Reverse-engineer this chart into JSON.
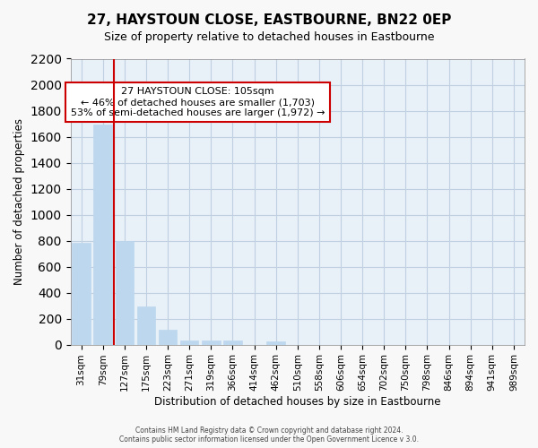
{
  "title": "27, HAYSTOUN CLOSE, EASTBOURNE, BN22 0EP",
  "subtitle": "Size of property relative to detached houses in Eastbourne",
  "xlabel": "Distribution of detached houses by size in Eastbourne",
  "ylabel": "Number of detached properties",
  "footer_line1": "Contains HM Land Registry data © Crown copyright and database right 2024.",
  "footer_line2": "Contains public sector information licensed under the Open Government Licence v 3.0.",
  "bin_labels": [
    "31sqm",
    "79sqm",
    "127sqm",
    "175sqm",
    "223sqm",
    "271sqm",
    "319sqm",
    "366sqm",
    "414sqm",
    "462sqm",
    "510sqm",
    "558sqm",
    "606sqm",
    "654sqm",
    "702sqm",
    "750sqm",
    "798sqm",
    "846sqm",
    "894sqm",
    "941sqm",
    "989sqm"
  ],
  "bar_values": [
    780,
    1690,
    800,
    295,
    113,
    35,
    35,
    35,
    0,
    25,
    0,
    0,
    0,
    0,
    0,
    0,
    0,
    0,
    0,
    0,
    0
  ],
  "bar_color": "#bdd7ee",
  "bar_edge_color": "#bdd7ee",
  "property_line_x": 1.5,
  "property_sqm": 105,
  "annotation_title": "27 HAYSTOUN CLOSE: 105sqm",
  "annotation_line1": "← 46% of detached houses are smaller (1,703)",
  "annotation_line2": "53% of semi-detached houses are larger (1,972) →",
  "annotation_box_color": "#ffffff",
  "annotation_box_edge_color": "#cc0000",
  "property_line_color": "#cc0000",
  "ylim": [
    0,
    2200
  ],
  "yticks": [
    0,
    200,
    400,
    600,
    800,
    1000,
    1200,
    1400,
    1600,
    1800,
    2000,
    2200
  ],
  "grid_color": "#c0d0e0",
  "background_color": "#e8f0f8"
}
